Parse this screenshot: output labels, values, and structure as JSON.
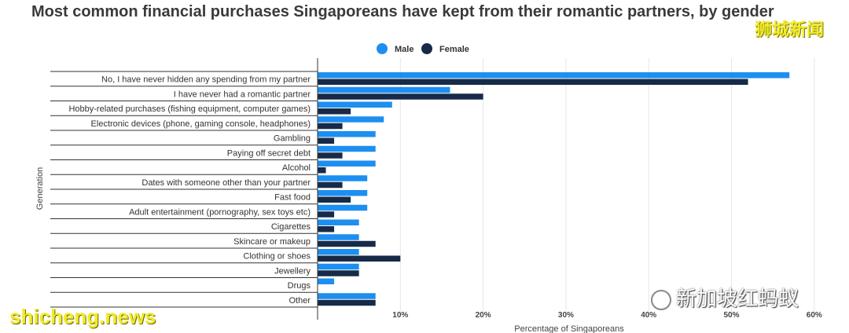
{
  "watermarks": {
    "top_right": "狮城新闻",
    "bottom_left": "shicheng.news",
    "bottom_right": "新加坡红蚂蚁"
  },
  "colors": {
    "male": "#1d8ff0",
    "female": "#172b48"
  },
  "chart_data": {
    "type": "bar",
    "orientation": "horizontal",
    "title": "Most common financial purchases Singaporeans have kept from their romantic partners, by gender",
    "xlabel": "Percentage of Singaporeans",
    "ylabel": "Generation",
    "xlim": [
      0,
      60
    ],
    "x_ticks": [
      "10%",
      "20%",
      "30%",
      "40%",
      "50%",
      "60%"
    ],
    "x_tick_values": [
      10,
      20,
      30,
      40,
      50,
      60
    ],
    "legend_position": "top-center",
    "categories": [
      "No, I have never hidden any spending from my partner",
      "I have never had a romantic partner",
      "Hobby-related purchases (fishing equipment, computer games)",
      "Electronic devices (phone, gaming console, headphones)",
      "Gambling",
      "Paying off secret debt",
      "Alcohol",
      "Dates with someone other than your partner",
      "Fast food",
      "Adult entertainment (pornography, sex toys etc)",
      "Cigarettes",
      "Skincare or makeup",
      "Clothing or shoes",
      "Jewellery",
      "Drugs",
      "Other"
    ],
    "series": [
      {
        "name": "Male",
        "values": [
          57,
          16,
          9,
          8,
          7,
          7,
          7,
          6,
          6,
          6,
          5,
          5,
          5,
          5,
          2,
          7
        ]
      },
      {
        "name": "Female",
        "values": [
          52,
          20,
          4,
          3,
          2,
          3,
          1,
          3,
          4,
          2,
          2,
          7,
          10,
          5,
          0,
          7
        ]
      }
    ]
  }
}
